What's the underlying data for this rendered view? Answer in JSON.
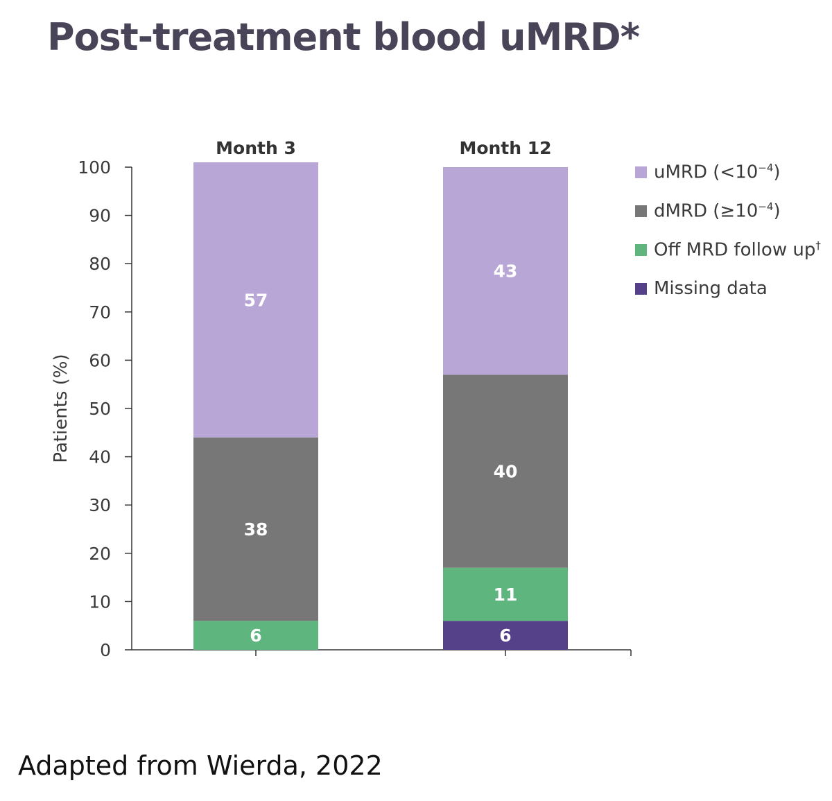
{
  "title": "Post-treatment blood uMRD*",
  "source": "Adapted from Wierda, 2022",
  "chart_data": {
    "type": "bar",
    "stacked": true,
    "categories": [
      "Month 3",
      "Month 12"
    ],
    "ylabel": "Patients (%)",
    "ylim": [
      0,
      100
    ],
    "yticks": [
      0,
      10,
      20,
      30,
      40,
      50,
      60,
      70,
      80,
      90,
      100
    ],
    "grid": false,
    "legend_position": "right",
    "series": [
      {
        "name": "Missing data",
        "color": "#55408a",
        "values": [
          0,
          6
        ]
      },
      {
        "name": "Off MRD follow up",
        "suffix": "†",
        "color": "#5fb57e",
        "values": [
          6,
          11
        ]
      },
      {
        "name": "dMRD (≥10",
        "suffix": "−4",
        "tail": ")",
        "color": "#777777",
        "values": [
          38,
          40
        ]
      },
      {
        "name": "uMRD (<10",
        "suffix": "−4",
        "tail": ")",
        "color": "#b8a6d6",
        "values": [
          57,
          43
        ]
      }
    ],
    "legend_order": [
      3,
      2,
      1,
      0
    ]
  }
}
